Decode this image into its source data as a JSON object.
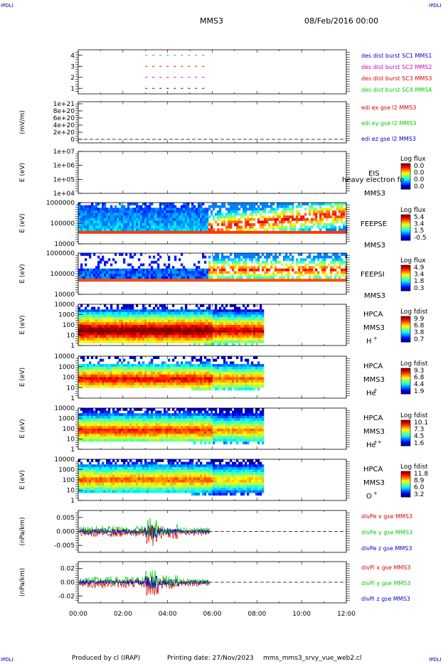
{
  "header": {
    "corner_tl": "IPDLI",
    "corner_tr": "IPDLI",
    "corner_bl": "IPDLI",
    "corner_br": "IPDLI",
    "mission": "MMS3",
    "date": "08/Feb/2016 00:00"
  },
  "footer": {
    "produced_by": "Produced by cl (IRAP)",
    "printing_date": "Printing date: 27/Nov/2023",
    "filename": "mms_mms3_srvy_vue_web2.cl"
  },
  "colors": {
    "green": "#00cc00",
    "red": "#dd0000",
    "blue": "#0000cc",
    "magenta": "#cc00cc"
  },
  "chart_data": [
    {
      "type": "line",
      "id": "burst",
      "y_ticks": [
        "4",
        "3",
        "2",
        "1"
      ],
      "ylim": [
        0.5,
        4.5
      ],
      "x": [
        3.0,
        5.8
      ],
      "series": [
        {
          "name": "des dist burst SC1 MMS1",
          "y": 1,
          "color": "blue"
        },
        {
          "name": "des dist burst SC2 MMS2",
          "y": 2,
          "color": "magenta"
        },
        {
          "name": "des dist burst SC3 MMS3",
          "y": 3,
          "color": "red"
        },
        {
          "name": "des dist burst SC4 MMS4",
          "y": 4,
          "color": "green"
        }
      ]
    },
    {
      "type": "line",
      "id": "edi",
      "ylabel": "(mV/m)",
      "y_ticks": [
        "1e+21",
        "8e+20",
        "6e+20",
        "4e+20",
        "2e+20",
        "0"
      ],
      "series": [
        {
          "name": "edi ex gse l2 MMS3",
          "color": "red"
        },
        {
          "name": "edi ey gse l2 MMS3",
          "color": "green"
        },
        {
          "name": "edi ez gse l2 MMS3",
          "color": "blue"
        }
      ]
    },
    {
      "type": "heatmap",
      "id": "eis",
      "ylabel": "E (eV)",
      "y_ticks": [
        "1e+07",
        "1e+06",
        "1e+05",
        "1e+04"
      ],
      "instrument": "EIS",
      "sc": "MMS3",
      "overlay_label": "heavy electron fo",
      "colorbar_title": "Log flux",
      "colorbar_ticks": [
        "0.0",
        "0.0",
        "0.0",
        "0.0"
      ]
    },
    {
      "type": "heatmap",
      "id": "feepse",
      "ylabel": "E (eV)",
      "y_ticks": [
        "1000000",
        "100000",
        "10000"
      ],
      "instrument": "FEEPSE",
      "sc": "MMS3",
      "colorbar_title": "Log flux",
      "colorbar_ticks": [
        "5.4",
        "3.4",
        "1.5",
        "-0.5"
      ]
    },
    {
      "type": "heatmap",
      "id": "feepsi",
      "ylabel": "E (eV)",
      "y_ticks": [
        "1000000",
        "100000",
        "10000"
      ],
      "instrument": "FEEPSI",
      "sc": "MMS3",
      "colorbar_title": "Log flux",
      "colorbar_ticks": [
        "4.9",
        "3.4",
        "1.8",
        "0.3"
      ]
    },
    {
      "type": "heatmap",
      "id": "hpca-h",
      "ylabel": "E (eV)",
      "y_ticks": [
        "10000",
        "1000",
        "100",
        "10",
        "1"
      ],
      "instrument": "HPCA",
      "sc": "MMS3",
      "species": "H",
      "charge": "+",
      "colorbar_title": "Log fdist",
      "colorbar_ticks": [
        "9.9",
        "6.8",
        "3.8",
        "0.7"
      ]
    },
    {
      "type": "heatmap",
      "id": "hpca-he",
      "ylabel": "E (eV)",
      "y_ticks": [
        "10000",
        "1000",
        "100",
        "10",
        "1"
      ],
      "instrument": "HPCA",
      "sc": "MMS3",
      "species": "He",
      "charge": "+",
      "colorbar_title": "Log fdist",
      "colorbar_ticks": [
        "9.3",
        "6.8",
        "4.4",
        "1.9"
      ]
    },
    {
      "type": "heatmap",
      "id": "hpca-hepp",
      "ylabel": "E (eV)",
      "y_ticks": [
        "10000",
        "1000",
        "100",
        "10",
        "1"
      ],
      "instrument": "HPCA",
      "sc": "MMS3",
      "species": "He",
      "charge": "++",
      "colorbar_title": "Log fdist",
      "colorbar_ticks": [
        "10.1",
        "7.3",
        "4.5",
        "1.6"
      ]
    },
    {
      "type": "heatmap",
      "id": "hpca-o",
      "ylabel": "E (eV)",
      "y_ticks": [
        "10000",
        "1000",
        "100",
        "10",
        "1"
      ],
      "instrument": "HPCA",
      "sc": "MMS3",
      "species": "O",
      "charge": "+",
      "colorbar_title": "Log fdist",
      "colorbar_ticks": [
        "11.8",
        "8.9",
        "6.0",
        "3.2"
      ]
    },
    {
      "type": "line",
      "id": "divpe",
      "ylabel": "(nPa/km)",
      "y_ticks": [
        "0.005",
        "0.000",
        "-0.005"
      ],
      "ylim": [
        -0.0075,
        0.0075
      ],
      "series": [
        {
          "name": "divPe x gse MMS3",
          "color": "red"
        },
        {
          "name": "divPe y gse MMS3",
          "color": "green"
        },
        {
          "name": "divPe z gse MMS3",
          "color": "blue"
        }
      ]
    },
    {
      "type": "line",
      "id": "divpi",
      "ylabel": "(nPa/km)",
      "y_ticks": [
        "0.02",
        "0.00",
        "-0.02"
      ],
      "ylim": [
        -0.03,
        0.03
      ],
      "series": [
        {
          "name": "divPi x gse MMS3",
          "color": "red"
        },
        {
          "name": "divPi y gse MMS3",
          "color": "green"
        },
        {
          "name": "divPi z gse MMS3",
          "color": "blue"
        }
      ]
    }
  ],
  "time_axis": {
    "ticks": [
      "00:00",
      "02:00",
      "04:00",
      "06:00",
      "08:00",
      "10:00",
      "12:00"
    ],
    "range_hours": [
      0,
      12
    ]
  }
}
